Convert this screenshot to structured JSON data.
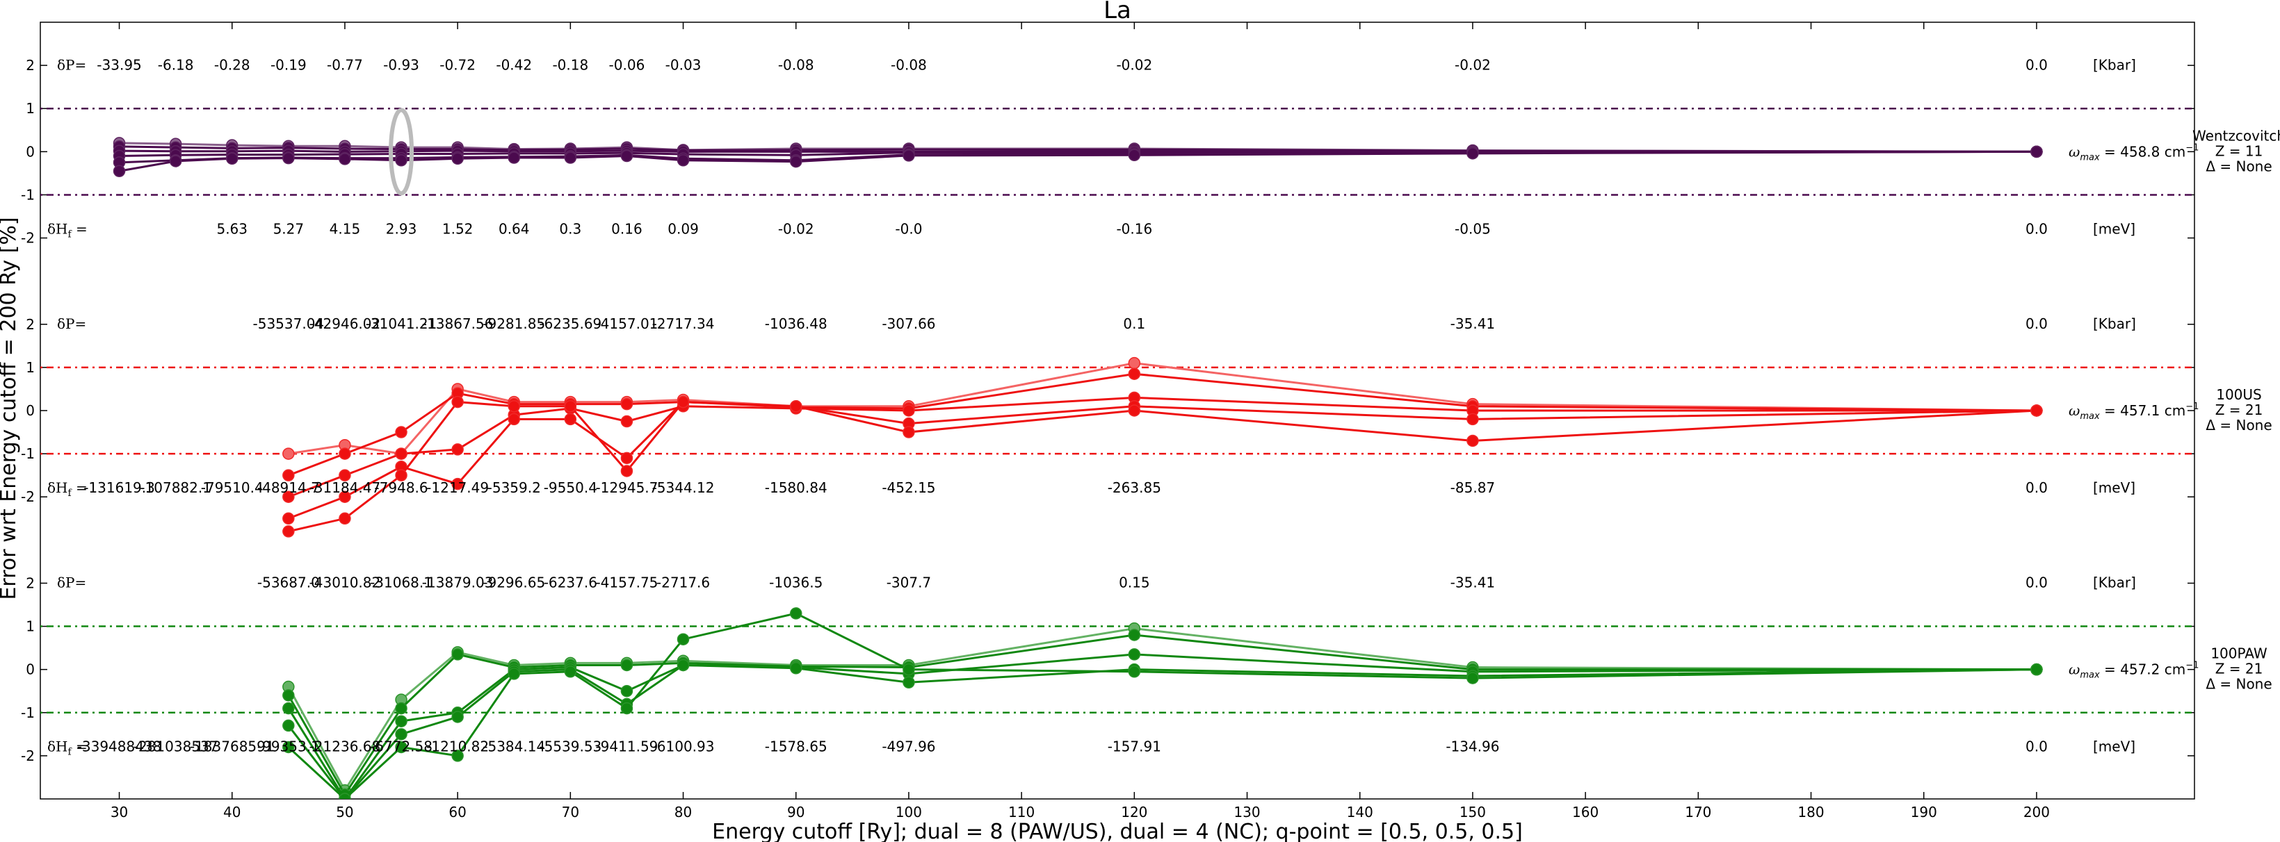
{
  "chart_data": {
    "type": "line",
    "title": "La",
    "xlabel": "Energy cutoff [Ry]; dual = 8 (PAW/US), dual = 4 (NC); q-point = [0.5, 0.5, 0.5]",
    "ylabel": "Error wrt Energy cutoff = 200 Ry [%]",
    "xlim": [
      23,
      214
    ],
    "x_ticks": [
      30,
      40,
      50,
      60,
      70,
      80,
      90,
      100,
      110,
      120,
      130,
      140,
      150,
      160,
      170,
      180,
      190,
      200
    ],
    "panel_ylim": [
      -3,
      3
    ],
    "y_ticks": [
      2,
      1,
      0,
      -1,
      -2
    ],
    "y_tick_labels": [
      "2",
      "1",
      "0",
      "-1",
      "-2"
    ],
    "tolerance_band": [
      -1,
      1
    ],
    "panels": [
      {
        "name": "Wentzcovitch",
        "label_lines": [
          "Wentzcovitch",
          "Z = 11",
          "Δ = None"
        ],
        "color": "#4b0a4e",
        "omega_label": "ω",
        "omega_sub": "max",
        "omega_value": "= 458.8 cm",
        "omega_sup": "−1",
        "dP_label": "δP=",
        "dP_unit": "[Kbar]",
        "dP_x": [
          30,
          35,
          40,
          45,
          50,
          55,
          60,
          65,
          70,
          75,
          80,
          90,
          100,
          120,
          150,
          200
        ],
        "dP_values": [
          "-33.95",
          "-6.18",
          "-0.28",
          "-0.19",
          "-0.77",
          "-0.93",
          "-0.72",
          "-0.42",
          "-0.18",
          "-0.06",
          "-0.03",
          "-0.08",
          "-0.08",
          "-0.02",
          "-0.02",
          "0.0"
        ],
        "dH_label": "δH",
        "dH_sub": "f",
        "dH_eq": " =",
        "dH_unit": "[meV]",
        "dH_x": [
          40,
          45,
          50,
          55,
          60,
          65,
          70,
          75,
          80,
          90,
          100,
          120,
          150,
          200
        ],
        "dH_values": [
          "5.63",
          "5.27",
          "4.15",
          "2.93",
          "1.52",
          "0.64",
          "0.3",
          "0.16",
          "0.09",
          "-0.02",
          "-0.0",
          "-0.16",
          "-0.05",
          "0.0"
        ],
        "highlight_x": 55,
        "x": [
          30,
          35,
          40,
          45,
          50,
          55,
          60,
          65,
          70,
          75,
          80,
          90,
          100,
          120,
          150,
          200
        ],
        "series": [
          {
            "values": [
              0.2,
              0.18,
              0.15,
              0.13,
              0.13,
              0.1,
              0.1,
              0.06,
              0.07,
              0.1,
              0.04,
              0.07,
              0.07,
              0.07,
              0.03,
              0.0
            ]
          },
          {
            "values": [
              0.12,
              0.1,
              0.08,
              0.09,
              0.07,
              0.06,
              0.06,
              0.04,
              0.05,
              0.07,
              0.03,
              0.04,
              0.05,
              0.05,
              0.02,
              0.0
            ]
          },
          {
            "values": [
              0.02,
              0.01,
              0.01,
              0.02,
              0.0,
              0.01,
              0.02,
              0.01,
              0.01,
              0.02,
              0.0,
              0.0,
              0.0,
              0.01,
              0.0,
              0.0
            ]
          },
          {
            "values": [
              -0.1,
              -0.08,
              -0.07,
              -0.07,
              -0.06,
              -0.05,
              -0.05,
              -0.04,
              -0.04,
              -0.03,
              -0.06,
              -0.08,
              -0.02,
              -0.02,
              -0.01,
              0.0
            ]
          },
          {
            "values": [
              -0.25,
              -0.2,
              -0.15,
              -0.14,
              -0.15,
              -0.15,
              -0.13,
              -0.12,
              -0.11,
              -0.08,
              -0.16,
              -0.2,
              -0.07,
              -0.06,
              -0.03,
              0.0
            ]
          },
          {
            "values": [
              -0.45,
              -0.22,
              -0.16,
              -0.15,
              -0.17,
              -0.2,
              -0.16,
              -0.14,
              -0.14,
              -0.1,
              -0.2,
              -0.23,
              -0.09,
              -0.08,
              -0.04,
              0.0
            ]
          }
        ]
      },
      {
        "name": "100US",
        "label_lines": [
          "100US",
          "Z = 21",
          "Δ = None"
        ],
        "color": "#ee1111",
        "omega_label": "ω",
        "omega_sub": "max",
        "omega_value": "= 457.1 cm",
        "omega_sup": "−1",
        "dP_label": "δP=",
        "dP_unit": "[Kbar]",
        "dP_x": [
          45,
          50,
          55,
          60,
          65,
          70,
          75,
          80,
          90,
          100,
          120,
          150,
          200
        ],
        "dP_values": [
          "-53537.04",
          "-42946.02",
          "-31041.21",
          "-13867.56",
          "-9281.85",
          "-6235.69",
          "-4157.01",
          "-2717.34",
          "-1036.48",
          "-307.66",
          "0.1",
          "-35.41",
          "0.0"
        ],
        "dH_label": "δH",
        "dH_sub": "f",
        "dH_eq": " =",
        "dH_unit": "[meV]",
        "dH_x": [
          30,
          35,
          40,
          45,
          50,
          55,
          60,
          65,
          70,
          75,
          80,
          90,
          100,
          120,
          150,
          200
        ],
        "dH_values": [
          "-131619.3",
          "-107882.1",
          "-79510.4",
          "-48914.7",
          "-31184.47",
          "-7948.6",
          "-1217.49",
          "-5359.2",
          "-9550.4",
          "-12945.7",
          "-5344.12",
          "-1580.84",
          "-452.15",
          "-263.85",
          "-85.87",
          "0.0"
        ],
        "x": [
          45,
          50,
          55,
          60,
          65,
          70,
          75,
          80,
          90,
          100,
          120,
          150,
          200
        ],
        "series": [
          {
            "values": [
              -1.0,
              -0.8,
              -1.0,
              0.5,
              0.2,
              0.2,
              0.2,
              0.25,
              0.1,
              0.1,
              1.1,
              0.15,
              0.0
            ]
          },
          {
            "values": [
              -1.5,
              -1.0,
              -0.5,
              0.4,
              0.15,
              0.15,
              0.15,
              0.2,
              0.08,
              0.05,
              0.85,
              0.1,
              0.0
            ]
          },
          {
            "values": [
              -2.0,
              -1.5,
              -1.0,
              -0.9,
              -0.1,
              0.05,
              -0.25,
              0.1,
              0.05,
              0.0,
              0.3,
              0.0,
              0.0
            ]
          },
          {
            "values": [
              -2.5,
              -2.0,
              -1.3,
              -1.7,
              -0.2,
              -0.2,
              -1.1,
              0.2,
              0.1,
              -0.3,
              0.1,
              -0.2,
              0.0
            ]
          },
          {
            "values": [
              -2.8,
              -2.5,
              -1.5,
              0.2,
              0.1,
              0.1,
              -1.4,
              0.2,
              0.1,
              -0.5,
              0.0,
              -0.7,
              0.0
            ]
          }
        ]
      },
      {
        "name": "100PAW",
        "label_lines": [
          "100PAW",
          "Z = 21",
          "Δ = None"
        ],
        "color": "#118811",
        "omega_label": "ω",
        "omega_sub": "max",
        "omega_value": "= 457.2 cm",
        "omega_sup": "−1",
        "dP_label": "δP=",
        "dP_unit": "[Kbar]",
        "dP_x": [
          45,
          50,
          55,
          60,
          65,
          70,
          75,
          80,
          90,
          100,
          120,
          150,
          200
        ],
        "dP_values": [
          "-53687.0",
          "-43010.82",
          "-31068.1",
          "-13879.03",
          "-9296.65",
          "-6237.6",
          "-4157.75",
          "-2717.6",
          "-1036.5",
          "-307.7",
          "0.15",
          "-35.41",
          "0.0"
        ],
        "dH_label": "δH",
        "dH_sub": "f",
        "dH_eq": " =",
        "dH_unit": "[meV]",
        "dH_x": [
          30,
          35,
          40,
          45,
          50,
          55,
          60,
          65,
          70,
          75,
          80,
          90,
          100,
          120,
          150,
          200
        ],
        "dH_values": [
          "-339488438",
          "-281038537",
          "-183768591",
          "-99353.1",
          "-21236.68",
          "-6772.58",
          "-1210.82",
          "-5384.14",
          "-5539.53",
          "-9411.59",
          "-6100.93",
          "-1578.65",
          "-497.96",
          "-157.91",
          "-134.96",
          "0.0"
        ],
        "x": [
          45,
          50,
          55,
          60,
          65,
          70,
          75,
          80,
          90,
          100,
          120,
          150,
          200
        ],
        "series": [
          {
            "values": [
              -0.4,
              -2.8,
              -0.7,
              0.4,
              0.1,
              0.15,
              0.15,
              0.2,
              0.1,
              0.1,
              0.95,
              0.05,
              0.0
            ]
          },
          {
            "values": [
              -0.6,
              -2.9,
              -0.9,
              0.35,
              0.05,
              0.1,
              0.1,
              0.15,
              0.07,
              0.05,
              0.8,
              0.0,
              0.0
            ]
          },
          {
            "values": [
              -0.9,
              -3.0,
              -1.2,
              -1.0,
              0.0,
              0.05,
              -0.5,
              0.1,
              0.05,
              -0.1,
              0.35,
              -0.05,
              0.0
            ]
          },
          {
            "values": [
              -1.3,
              -3.0,
              -1.5,
              -1.1,
              -0.05,
              0.0,
              -0.8,
              0.1,
              0.03,
              -0.3,
              0.0,
              -0.15,
              0.0
            ]
          },
          {
            "values": [
              -1.8,
              -3.0,
              -1.8,
              -2.0,
              -0.1,
              -0.05,
              -0.9,
              0.7,
              1.3,
              0.0,
              -0.05,
              -0.2,
              0.0
            ]
          }
        ]
      }
    ]
  }
}
